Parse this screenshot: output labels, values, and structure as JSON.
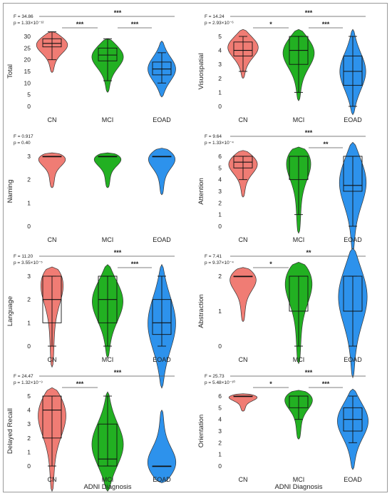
{
  "colors": {
    "CN": "#f07c74",
    "MCI": "#22b022",
    "EOAD": "#2d92ec"
  },
  "x_axis_label": "ADNI Diagnosis",
  "chart_data": [
    {
      "type": "violin",
      "ylabel": "Total",
      "ylim": [
        0,
        30
      ],
      "yticks": [
        0,
        5,
        10,
        15,
        20,
        25,
        30
      ],
      "categories": [
        "CN",
        "MCI",
        "EOAD"
      ],
      "stats": {
        "F": "F = 34.86",
        "p": "p = 1.33×10⁻¹²"
      },
      "series": [
        {
          "name": "CN",
          "min": 14.5,
          "max": 32,
          "median": 27,
          "q1": 25.5,
          "q3": 29,
          "wlo": 20,
          "whi": 32,
          "peak": 27,
          "width": 0.9
        },
        {
          "name": "MCI",
          "min": 6,
          "max": 29,
          "median": 22,
          "q1": 19.5,
          "q3": 25,
          "wlo": 11,
          "whi": 29,
          "peak": 22,
          "width": 0.9
        },
        {
          "name": "EOAD",
          "min": 4,
          "max": 28,
          "median": 16,
          "q1": 13.5,
          "q3": 19,
          "wlo": 10,
          "whi": 23,
          "peak": 16,
          "width": 0.75
        }
      ],
      "sig": [
        {
          "from": 0,
          "to": 1,
          "label": "***"
        },
        {
          "from": 1,
          "to": 2,
          "label": "***"
        },
        {
          "from": 0,
          "to": 2,
          "label": "***"
        }
      ]
    },
    {
      "type": "violin",
      "ylabel": "Visuospatial",
      "ylim": [
        0,
        5
      ],
      "yticks": [
        0,
        1,
        2,
        3,
        4,
        5
      ],
      "categories": [
        "CN",
        "MCI",
        "EOAD"
      ],
      "stats": {
        "F": "F = 14.24",
        "p": "p = 2.93×10⁻⁶"
      },
      "series": [
        {
          "name": "CN",
          "min": 2,
          "max": 5.5,
          "median": 4,
          "q1": 3.6,
          "q3": 4.6,
          "wlo": 2.5,
          "whi": 5,
          "peak": 4.3,
          "width": 0.85
        },
        {
          "name": "MCI",
          "min": 0.4,
          "max": 5.5,
          "median": 4,
          "q1": 3,
          "q3": 5,
          "wlo": 1,
          "whi": 5,
          "peak": 4,
          "width": 0.9
        },
        {
          "name": "EOAD",
          "min": -0.6,
          "max": 5.5,
          "median": 2.5,
          "q1": 1.5,
          "q3": 3.6,
          "wlo": 0,
          "whi": 5,
          "peak": 2.5,
          "width": 0.7
        }
      ],
      "sig": [
        {
          "from": 0,
          "to": 1,
          "label": "*"
        },
        {
          "from": 1,
          "to": 2,
          "label": "***"
        },
        {
          "from": 0,
          "to": 2,
          "label": "***"
        }
      ]
    },
    {
      "type": "violin",
      "ylabel": "Naming",
      "ylim": [
        0,
        3
      ],
      "yticks": [
        0,
        1,
        2,
        3
      ],
      "categories": [
        "CN",
        "MCI",
        "EOAD"
      ],
      "stats": {
        "F": "F = 0.917",
        "p": "p = 0.40"
      },
      "series": [
        {
          "name": "CN",
          "min": 1.65,
          "max": 3.15,
          "median": 3,
          "q1": 3,
          "q3": 3,
          "wlo": 3,
          "whi": 3,
          "peak": 3,
          "width": 0.95
        },
        {
          "name": "MCI",
          "min": 1.65,
          "max": 3.15,
          "median": 3,
          "q1": 3,
          "q3": 3,
          "wlo": 3,
          "whi": 3,
          "peak": 3,
          "width": 0.95
        },
        {
          "name": "EOAD",
          "min": 1.35,
          "max": 3.35,
          "median": 3,
          "q1": 3,
          "q3": 3,
          "wlo": 3,
          "whi": 3,
          "peak": 3,
          "width": 0.85
        }
      ],
      "sig": []
    },
    {
      "type": "violin",
      "ylabel": "Attention",
      "ylim": [
        0,
        6
      ],
      "yticks": [
        0,
        1,
        2,
        3,
        4,
        5,
        6
      ],
      "categories": [
        "CN",
        "MCI",
        "EOAD"
      ],
      "stats": {
        "F": "F = 9.64",
        "p": "p = 1.33×10⁻⁴"
      },
      "series": [
        {
          "name": "CN",
          "min": 2.5,
          "max": 6.5,
          "median": 5.5,
          "q1": 5,
          "q3": 6,
          "wlo": 4,
          "whi": 6,
          "peak": 5.5,
          "width": 0.85
        },
        {
          "name": "MCI",
          "min": -0.6,
          "max": 6.8,
          "median": 6,
          "q1": 4,
          "q3": 6,
          "wlo": 1,
          "whi": 6,
          "peak": 6,
          "width": 0.85
        },
        {
          "name": "EOAD",
          "min": -2.2,
          "max": 7.2,
          "median": 3.5,
          "q1": 3,
          "q3": 6,
          "wlo": 0,
          "whi": 6,
          "peak": 4,
          "width": 0.75
        }
      ],
      "sig": [
        {
          "from": 1,
          "to": 2,
          "label": "**"
        },
        {
          "from": 0,
          "to": 2,
          "label": "***"
        }
      ]
    },
    {
      "type": "violin",
      "ylabel": "Language",
      "ylim": [
        0,
        3
      ],
      "yticks": [
        0,
        1,
        2,
        3
      ],
      "categories": [
        "CN",
        "MCI",
        "EOAD"
      ],
      "stats": {
        "F": "F = 11.20",
        "p": "p = 3.55×10⁻⁵"
      },
      "series": [
        {
          "name": "CN",
          "min": -0.9,
          "max": 3.4,
          "median": 2,
          "q1": 1,
          "q3": 3,
          "wlo": 0,
          "whi": 3,
          "peak": 3,
          "width": 0.8
        },
        {
          "name": "MCI",
          "min": -0.5,
          "max": 3.5,
          "median": 2,
          "q1": 1,
          "q3": 3,
          "wlo": 0,
          "whi": 3,
          "peak": 2,
          "width": 0.85
        },
        {
          "name": "EOAD",
          "min": -1.8,
          "max": 3.5,
          "median": 1,
          "q1": 0.5,
          "q3": 2,
          "wlo": 0,
          "whi": 3,
          "peak": 1,
          "width": 0.75
        }
      ],
      "sig": [
        {
          "from": 1,
          "to": 2,
          "label": "***"
        },
        {
          "from": 0,
          "to": 2,
          "label": "***"
        }
      ]
    },
    {
      "type": "violin",
      "ylabel": "Abstraction",
      "ylim": [
        0,
        2
      ],
      "yticks": [
        0,
        1,
        2
      ],
      "categories": [
        "CN",
        "MCI",
        "EOAD"
      ],
      "stats": {
        "F": "F = 7.41",
        "p": "p = 9.37×10⁻⁴"
      },
      "series": [
        {
          "name": "CN",
          "min": 0.7,
          "max": 2.25,
          "median": 2,
          "q1": 2,
          "q3": 2,
          "wlo": 2,
          "whi": 2,
          "peak": 2,
          "width": 0.85
        },
        {
          "name": "MCI",
          "min": -0.5,
          "max": 2.4,
          "median": 2,
          "q1": 1,
          "q3": 2,
          "wlo": 0,
          "whi": 2,
          "peak": 2,
          "width": 0.9
        },
        {
          "name": "EOAD",
          "min": -0.9,
          "max": 2.8,
          "median": 1,
          "q1": 1,
          "q3": 2,
          "wlo": 0,
          "whi": 2,
          "peak": 1.5,
          "width": 0.8
        }
      ],
      "sig": [
        {
          "from": 0,
          "to": 1,
          "label": "*"
        },
        {
          "from": 0,
          "to": 2,
          "label": "**"
        }
      ]
    },
    {
      "type": "violin",
      "ylabel": "Delayed Recall",
      "ylim": [
        0,
        5
      ],
      "yticks": [
        0,
        1,
        2,
        3,
        4,
        5
      ],
      "categories": [
        "CN",
        "MCI",
        "EOAD"
      ],
      "stats": {
        "F": "F = 24.47",
        "p": "p = 1.32×10⁻⁹"
      },
      "series": [
        {
          "name": "CN",
          "min": -1.8,
          "max": 5.6,
          "median": 4,
          "q1": 2,
          "q3": 5,
          "wlo": 0,
          "whi": 5,
          "peak": 4,
          "width": 0.85
        },
        {
          "name": "MCI",
          "min": -1.8,
          "max": 5.3,
          "median": 0.5,
          "q1": 0,
          "q3": 3,
          "wlo": 0,
          "whi": 5,
          "peak": 1.5,
          "width": 0.85
        },
        {
          "name": "EOAD",
          "min": -1.2,
          "max": 4,
          "median": 0,
          "q1": 0,
          "q3": 0,
          "wlo": 0,
          "whi": 0,
          "peak": 0,
          "width": 0.85
        }
      ],
      "sig": [
        {
          "from": 0,
          "to": 1,
          "label": "***"
        },
        {
          "from": 0,
          "to": 2,
          "label": "***"
        }
      ]
    },
    {
      "type": "violin",
      "ylabel": "Orientation",
      "ylim": [
        0,
        6
      ],
      "yticks": [
        0,
        1,
        2,
        3,
        4,
        5,
        6
      ],
      "categories": [
        "CN",
        "MCI",
        "EOAD"
      ],
      "stats": {
        "F": "F = 25.73",
        "p": "p = 5.48×10⁻¹⁰"
      },
      "series": [
        {
          "name": "CN",
          "min": 4.7,
          "max": 6.2,
          "median": 6,
          "q1": 6,
          "q3": 6,
          "wlo": 6,
          "whi": 6,
          "peak": 6,
          "width": 0.95
        },
        {
          "name": "MCI",
          "min": 2.3,
          "max": 6.5,
          "median": 6,
          "q1": 5,
          "q3": 6,
          "wlo": 4,
          "whi": 6,
          "peak": 6,
          "width": 0.95
        },
        {
          "name": "EOAD",
          "min": -0.3,
          "max": 6.6,
          "median": 4,
          "q1": 3,
          "q3": 5,
          "wlo": 2,
          "whi": 6,
          "peak": 4,
          "width": 0.85
        }
      ],
      "sig": [
        {
          "from": 0,
          "to": 1,
          "label": "*"
        },
        {
          "from": 1,
          "to": 2,
          "label": "***"
        },
        {
          "from": 0,
          "to": 2,
          "label": "***"
        }
      ]
    }
  ]
}
